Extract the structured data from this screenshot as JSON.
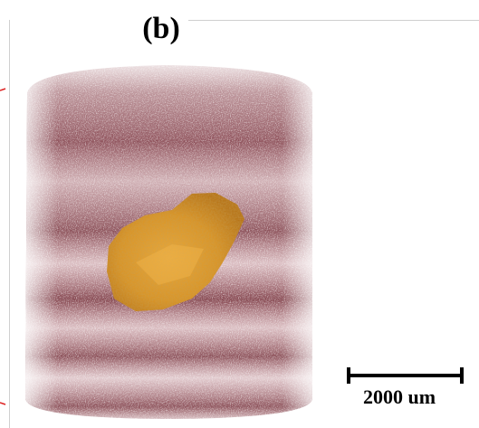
{
  "panel_label": "(b)",
  "scale_bar": {
    "label": "2000 um"
  }
}
